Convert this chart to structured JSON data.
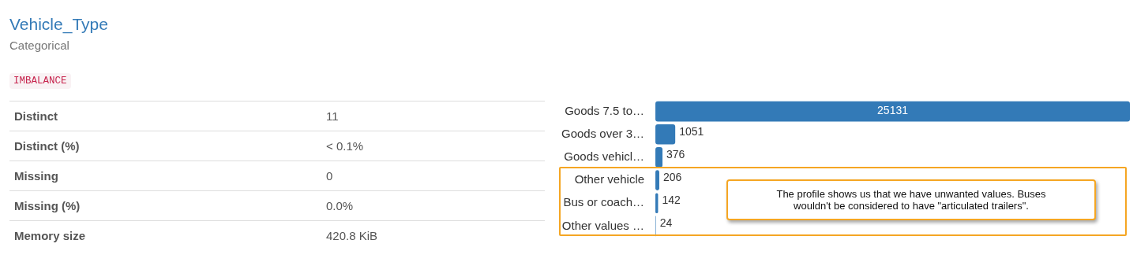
{
  "chart_data": [
    {
      "type": "other",
      "title": "Vehicle_Type",
      "subtitle": "Categorical",
      "annotations": [
        "IMBALANCE",
        "Distinct",
        "11",
        "Distinct (%)",
        "< 0.1%",
        "Missing",
        "0",
        "Missing (%)",
        "0.0%",
        "Memory size",
        "420.8 KiB"
      ]
    },
    {
      "type": "bar",
      "orientation": "horizontal",
      "categories": [
        "Goods 7.5 to…",
        "Goods over 3…",
        "Goods vehicl…",
        "Other vehicle",
        "Bus or coach…",
        "Other values …"
      ],
      "values": [
        25131,
        1051,
        376,
        206,
        142,
        24
      ],
      "color": "#337ab7",
      "data_labels": true,
      "annotations": [
        "The profile shows us that we have unwanted values. Buses wouldn't be considered to have \"articulated trailers\"."
      ]
    }
  ]
}
